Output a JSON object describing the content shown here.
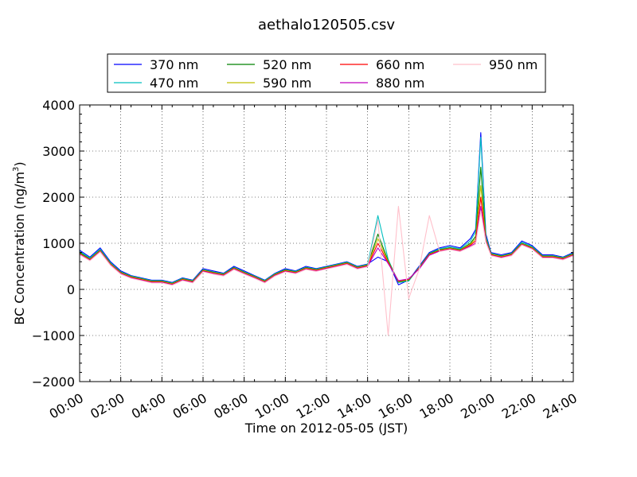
{
  "chart_data": {
    "type": "line",
    "title": "aethalo120505.csv",
    "xlabel": "Time on 2012-05-05 (JST)",
    "ylabel_main": "BC Concentration (ng/m",
    "ylabel_sup": "3",
    "ylabel_close": ")",
    "xlim": [
      0,
      24
    ],
    "ylim": [
      -2000,
      4000
    ],
    "grid": true,
    "legend_position": "top",
    "x_ticks": [
      0,
      2,
      4,
      6,
      8,
      10,
      12,
      14,
      16,
      18,
      20,
      22,
      24
    ],
    "x_tick_labels": [
      "00:00",
      "02:00",
      "04:00",
      "06:00",
      "08:00",
      "10:00",
      "12:00",
      "14:00",
      "16:00",
      "18:00",
      "20:00",
      "22:00",
      "24:00"
    ],
    "y_ticks": [
      -2000,
      -1000,
      0,
      1000,
      2000,
      3000,
      4000
    ],
    "y_tick_labels": [
      "−2000",
      "−1000",
      "0",
      "1000",
      "2000",
      "3000",
      "4000"
    ],
    "x": [
      0,
      0.5,
      1,
      1.5,
      2,
      2.5,
      3,
      3.5,
      4,
      4.5,
      5,
      5.5,
      6,
      6.5,
      7,
      7.5,
      8,
      8.5,
      9,
      9.5,
      10,
      10.5,
      11,
      11.5,
      12,
      12.5,
      13,
      13.5,
      14,
      14.5,
      15,
      15.5,
      16,
      16.5,
      17,
      17.5,
      18,
      18.5,
      19,
      19.25,
      19.5,
      19.75,
      20,
      20.5,
      21,
      21.5,
      22,
      22.5,
      23,
      23.5,
      24
    ],
    "series": [
      {
        "name": "370 nm",
        "color": "#0000ff",
        "values": [
          850,
          700,
          900,
          600,
          400,
          300,
          250,
          200,
          200,
          150,
          250,
          200,
          450,
          400,
          350,
          500,
          400,
          300,
          200,
          350,
          450,
          400,
          500,
          450,
          500,
          550,
          600,
          500,
          550,
          700,
          600,
          100,
          200,
          500,
          800,
          900,
          950,
          900,
          1100,
          1300,
          3400,
          1200,
          800,
          750,
          800,
          1050,
          950,
          750,
          750,
          700,
          800
        ]
      },
      {
        "name": "470 nm",
        "color": "#00bfbf",
        "values": [
          820,
          680,
          870,
          580,
          380,
          290,
          240,
          190,
          190,
          140,
          240,
          190,
          430,
          380,
          340,
          480,
          380,
          290,
          190,
          340,
          430,
          390,
          480,
          440,
          490,
          540,
          590,
          490,
          540,
          1600,
          650,
          150,
          180,
          480,
          780,
          880,
          920,
          880,
          1050,
          1250,
          3300,
          1150,
          780,
          730,
          780,
          1020,
          930,
          730,
          730,
          690,
          780
        ]
      },
      {
        "name": "520 nm",
        "color": "#008000",
        "values": [
          800,
          660,
          850,
          560,
          370,
          280,
          230,
          180,
          180,
          130,
          230,
          180,
          420,
          370,
          330,
          470,
          370,
          280,
          180,
          330,
          420,
          380,
          470,
          430,
          480,
          530,
          580,
          480,
          530,
          1200,
          620,
          160,
          200,
          470,
          770,
          860,
          900,
          860,
          1000,
          1150,
          2650,
          1100,
          770,
          720,
          770,
          1000,
          910,
          720,
          720,
          680,
          770
        ]
      },
      {
        "name": "590 nm",
        "color": "#bfbf00",
        "values": [
          780,
          650,
          840,
          550,
          360,
          270,
          220,
          170,
          170,
          120,
          220,
          170,
          410,
          360,
          320,
          460,
          360,
          270,
          170,
          320,
          410,
          370,
          460,
          420,
          470,
          520,
          570,
          470,
          520,
          1100,
          600,
          170,
          210,
          460,
          760,
          850,
          890,
          850,
          980,
          1100,
          2250,
          1080,
          760,
          710,
          760,
          990,
          900,
          710,
          710,
          670,
          760
        ]
      },
      {
        "name": "660 nm",
        "color": "#ff0000",
        "values": [
          770,
          640,
          830,
          540,
          350,
          260,
          210,
          160,
          160,
          110,
          210,
          160,
          400,
          350,
          310,
          450,
          350,
          260,
          160,
          310,
          400,
          360,
          450,
          410,
          460,
          510,
          560,
          460,
          510,
          1000,
          580,
          180,
          220,
          450,
          750,
          840,
          880,
          840,
          960,
          1050,
          2000,
          1060,
          750,
          700,
          750,
          980,
          890,
          700,
          700,
          660,
          750
        ]
      },
      {
        "name": "880 nm",
        "color": "#bf00bf",
        "values": [
          760,
          630,
          820,
          530,
          340,
          250,
          200,
          150,
          150,
          100,
          200,
          150,
          390,
          340,
          300,
          440,
          340,
          250,
          150,
          300,
          390,
          350,
          440,
          400,
          450,
          500,
          550,
          450,
          500,
          900,
          560,
          190,
          230,
          440,
          740,
          830,
          870,
          830,
          940,
          1000,
          1800,
          1040,
          740,
          690,
          740,
          970,
          880,
          690,
          690,
          650,
          740
        ]
      },
      {
        "name": "950 nm",
        "color": "#ffc0cb",
        "values": [
          750,
          620,
          810,
          520,
          330,
          240,
          190,
          140,
          140,
          90,
          190,
          140,
          380,
          330,
          290,
          430,
          330,
          240,
          140,
          290,
          380,
          340,
          430,
          390,
          440,
          490,
          540,
          440,
          490,
          1500,
          -1000,
          1800,
          -200,
          430,
          1600,
          820,
          860,
          820,
          920,
          980,
          1700,
          1020,
          730,
          680,
          730,
          960,
          870,
          680,
          680,
          640,
          730
        ]
      }
    ]
  }
}
